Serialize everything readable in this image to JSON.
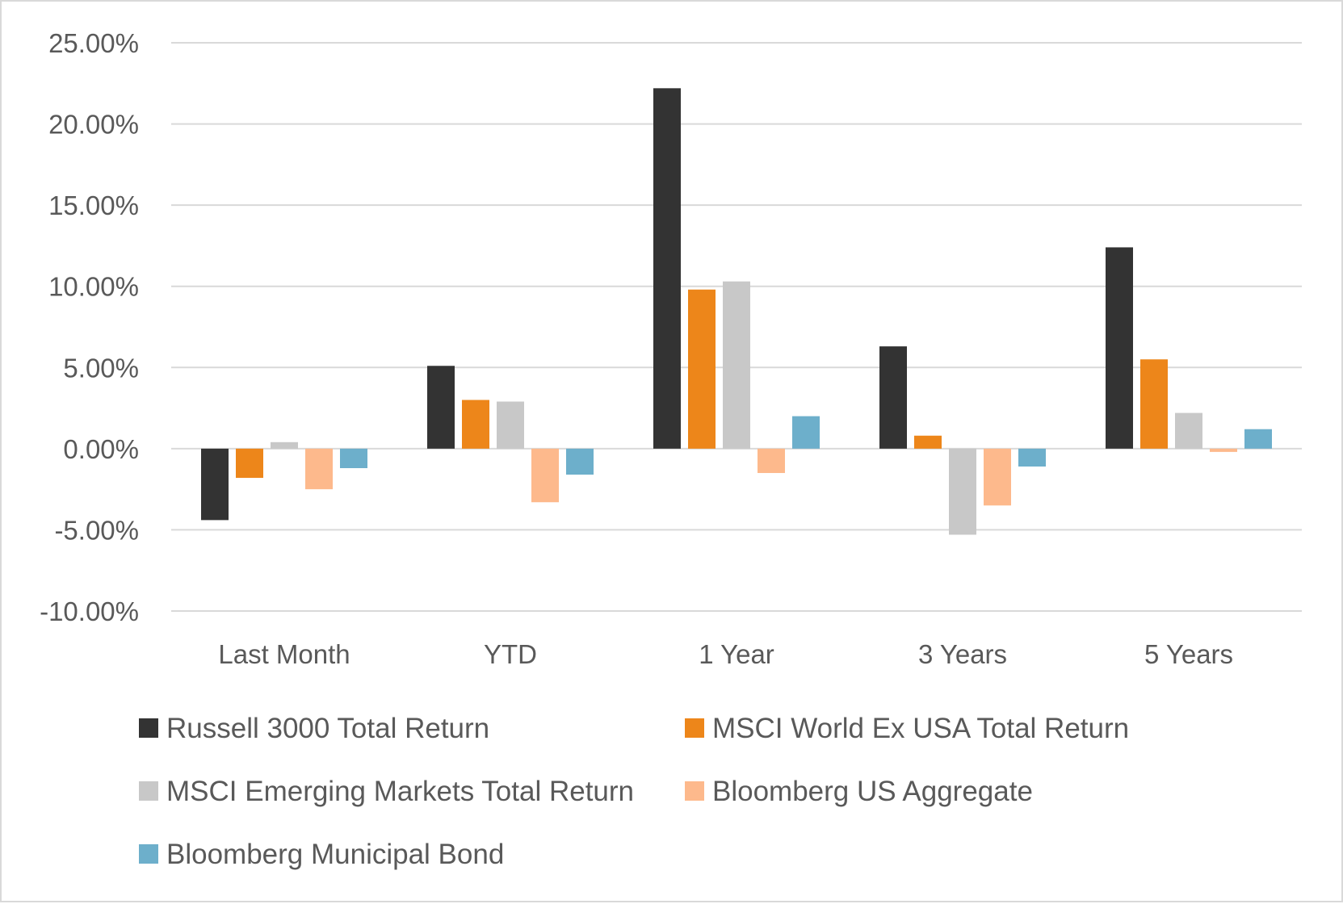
{
  "chart_data": {
    "type": "bar",
    "title": "",
    "xlabel": "",
    "ylabel": "",
    "categories": [
      "Last Month",
      "YTD",
      "1 Year",
      "3 Years",
      "5 Years"
    ],
    "ylim": [
      -10,
      25
    ],
    "ytick_step": 5,
    "ytick_labels": [
      "-10.00%",
      "-5.00%",
      "0.00%",
      "5.00%",
      "10.00%",
      "15.00%",
      "20.00%",
      "25.00%"
    ],
    "grid": true,
    "legend_placement": "bottom",
    "series": [
      {
        "name": "Russell 3000 Total Return",
        "color": "#333333",
        "values": [
          -4.4,
          5.1,
          22.2,
          6.3,
          12.4
        ]
      },
      {
        "name": "MSCI World Ex USA Total Return",
        "color": "#ED861A",
        "values": [
          -1.8,
          3.0,
          9.8,
          0.8,
          5.5
        ]
      },
      {
        "name": "MSCI Emerging Markets Total Return",
        "color": "#C8C8C8",
        "values": [
          0.4,
          2.9,
          10.3,
          -5.3,
          2.2
        ]
      },
      {
        "name": "Bloomberg US Aggregate",
        "color": "#FDB98C",
        "values": [
          -2.5,
          -3.3,
          -1.5,
          -3.5,
          -0.2
        ]
      },
      {
        "name": "Bloomberg Municipal Bond",
        "color": "#6DAFCB",
        "values": [
          -1.2,
          -1.6,
          2.0,
          -1.1,
          1.2
        ]
      }
    ]
  }
}
